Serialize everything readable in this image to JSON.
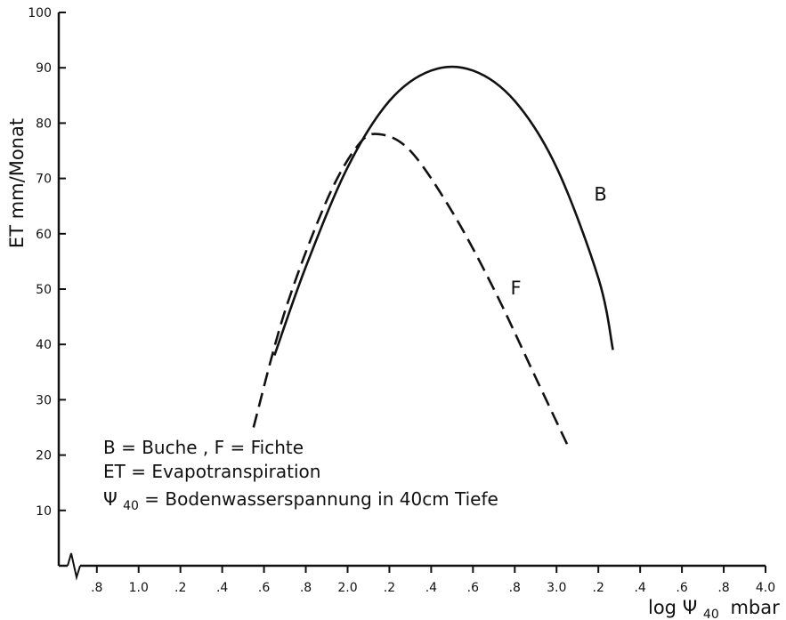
{
  "chart_data": {
    "type": "line",
    "ylabel": "ET mm/Monat",
    "xlabel": {
      "prefix": "log",
      "symbol": "Ψ",
      "subscript": "40",
      "suffix": "mbar"
    },
    "ylim": [
      0,
      100
    ],
    "y_ticks": [
      "10",
      "20",
      "30",
      "40",
      "50",
      "60",
      "70",
      "80",
      "90",
      "100"
    ],
    "xlim": [
      0.72,
      4.0
    ],
    "x_axis_break": true,
    "x_ticks": [
      {
        "value": 0.8,
        "label": ".8"
      },
      {
        "value": 1.0,
        "label": "1.0"
      },
      {
        "value": 1.2,
        "label": ".2"
      },
      {
        "value": 1.4,
        "label": ".4"
      },
      {
        "value": 1.6,
        "label": ".6"
      },
      {
        "value": 1.8,
        "label": ".8"
      },
      {
        "value": 2.0,
        "label": "2.0"
      },
      {
        "value": 2.2,
        "label": ".2"
      },
      {
        "value": 2.4,
        "label": ".4"
      },
      {
        "value": 2.6,
        "label": ".6"
      },
      {
        "value": 2.8,
        "label": ".8"
      },
      {
        "value": 3.0,
        "label": "3.0"
      },
      {
        "value": 3.2,
        "label": ".2"
      },
      {
        "value": 3.4,
        "label": ".4"
      },
      {
        "value": 3.6,
        "label": ".6"
      },
      {
        "value": 3.8,
        "label": ".8"
      },
      {
        "value": 4.0,
        "label": "4.0"
      }
    ],
    "series": [
      {
        "name": "B",
        "style": "solid",
        "x": [
          1.65,
          1.8,
          2.0,
          2.2,
          2.4,
          2.6,
          2.8,
          3.0,
          3.2,
          3.27
        ],
        "y": [
          38,
          54,
          72,
          84,
          89.5,
          89.5,
          84,
          72,
          52,
          39
        ]
      },
      {
        "name": "F",
        "style": "dashed",
        "x": [
          1.55,
          1.7,
          1.9,
          2.05,
          2.15,
          2.3,
          2.5,
          2.7,
          2.9,
          3.05
        ],
        "y": [
          25,
          46,
          66,
          76,
          78,
          75,
          64,
          50,
          34,
          22
        ]
      }
    ],
    "legend_text": [
      "B = Buche , F = Fichte",
      "ET = Evapotranspiration",
      {
        "symbol": "Ψ",
        "subscript": "40",
        "text": "= Bodenwasserspannung in 40cm Tiefe"
      }
    ]
  }
}
